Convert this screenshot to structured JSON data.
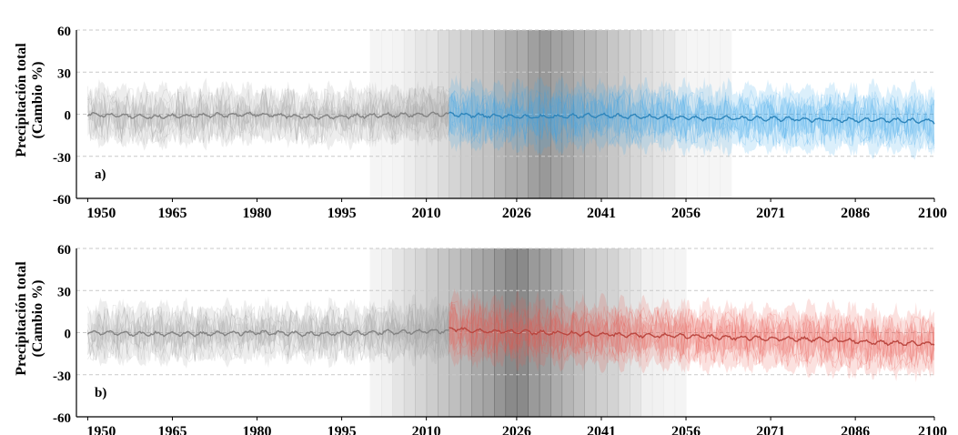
{
  "chart_data": [
    {
      "type": "line",
      "panel_label": "a)",
      "ylabel": [
        "Precipitación total",
        "(Cambio %)"
      ],
      "yticks": [
        60,
        30,
        0,
        -30,
        -60
      ],
      "ylim": [
        -60,
        60
      ],
      "xlim": [
        1948,
        2100
      ],
      "xticks": [
        1950,
        1965,
        1980,
        1995,
        2010,
        2026,
        2041,
        2056,
        2071,
        2086,
        2100
      ],
      "grid": "horizontal dashed",
      "colors": {
        "historical": "#9a9a9a",
        "projection": "#3aa6ea",
        "band": "#5a5a5a"
      },
      "band_center": 2031,
      "band_range": [
        2000,
        2063
      ],
      "series": [
        {
          "period": "historical",
          "x": [
            1950,
            1960,
            1970,
            1980,
            1990,
            2000,
            2010,
            2014
          ],
          "values": [
            0,
            -2,
            -1,
            0,
            -2,
            -1,
            0,
            0
          ]
        },
        {
          "period": "projection",
          "x": [
            2014,
            2020,
            2030,
            2040,
            2050,
            2060,
            2070,
            2080,
            2090,
            2100
          ],
          "values": [
            0,
            -1,
            -2,
            -1,
            -2,
            -3,
            -3,
            -4,
            -4,
            -5
          ]
        }
      ]
    },
    {
      "type": "line",
      "panel_label": "b)",
      "ylabel": [
        "Precipitación total",
        "(Cambio %)"
      ],
      "yticks": [
        60,
        30,
        0,
        -30,
        -60
      ],
      "ylim": [
        -60,
        60
      ],
      "xlim": [
        1948,
        2100
      ],
      "xticks": [
        1950,
        1965,
        1980,
        1995,
        2010,
        2026,
        2041,
        2056,
        2071,
        2086,
        2100
      ],
      "grid": "horizontal dashed",
      "colors": {
        "historical": "#9a9a9a",
        "projection": "#e8584f",
        "band": "#3e3e3e"
      },
      "band_center": 2026,
      "band_range": [
        2000,
        2056
      ],
      "series": [
        {
          "period": "historical",
          "x": [
            1950,
            1960,
            1970,
            1980,
            1990,
            2000,
            2010,
            2014
          ],
          "values": [
            0,
            -1,
            -1,
            0,
            -1,
            0,
            1,
            1
          ]
        },
        {
          "period": "projection",
          "x": [
            2014,
            2020,
            2030,
            2040,
            2050,
            2060,
            2070,
            2080,
            2090,
            2100
          ],
          "values": [
            3,
            1,
            0,
            -1,
            -2,
            -3,
            -4,
            -5,
            -7,
            -8
          ]
        }
      ]
    }
  ]
}
